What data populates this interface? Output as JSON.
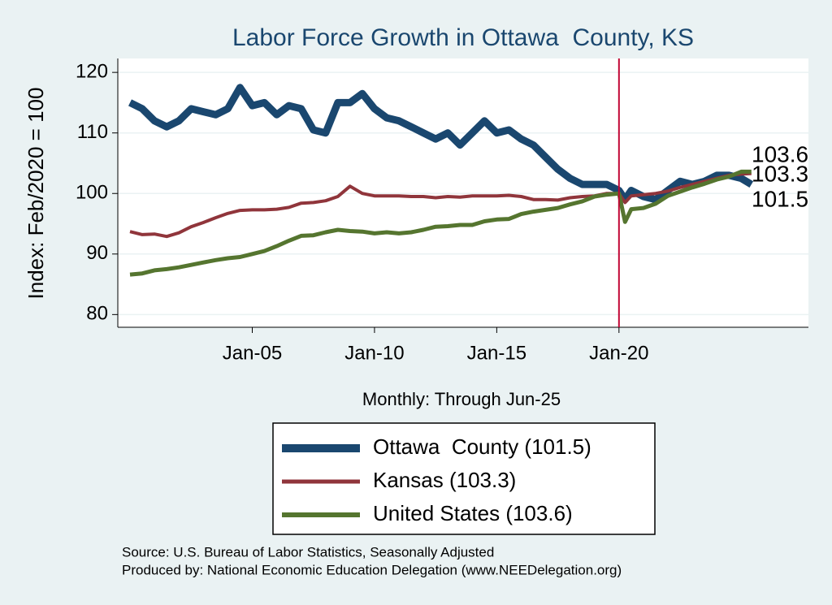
{
  "chart_data": {
    "type": "line",
    "title": "Labor Force Growth in Ottawa  County, KS",
    "y_label": "Index: Feb/2020 = 100",
    "x_label": "Monthly: Through Jun-25",
    "source": "Source: U.S. Bureau of Labor Statistics, Seasonally Adjusted",
    "producer": "Produced by: National Economic Education Delegation (www.NEEDelegation.org)",
    "x": [
      "Jan-00",
      "Jul-00",
      "Jan-01",
      "Jul-01",
      "Jan-02",
      "Jul-02",
      "Jan-03",
      "Jul-03",
      "Jan-04",
      "Jul-04",
      "Jan-05",
      "Jul-05",
      "Jan-06",
      "Jul-06",
      "Jan-07",
      "Jul-07",
      "Jan-08",
      "Jul-08",
      "Jan-09",
      "Jul-09",
      "Jan-10",
      "Jul-10",
      "Jan-11",
      "Jul-11",
      "Jan-12",
      "Jul-12",
      "Jan-13",
      "Jul-13",
      "Jan-14",
      "Jul-14",
      "Jan-15",
      "Jul-15",
      "Jan-16",
      "Jul-16",
      "Jan-17",
      "Jul-17",
      "Jan-18",
      "Jul-18",
      "Jan-19",
      "Jul-19",
      "Jan-20",
      "Apr-20",
      "Jul-20",
      "Jan-21",
      "Jul-21",
      "Jan-22",
      "Jul-22",
      "Jan-23",
      "Jul-23",
      "Jan-24",
      "Jul-24",
      "Jan-25",
      "Jun-25"
    ],
    "series": [
      {
        "name": "Ottawa  County (101.5)",
        "color": "#1a476f",
        "values": [
          115,
          114,
          112,
          111,
          112,
          114,
          113.5,
          113,
          114,
          117.5,
          114.5,
          115,
          113,
          114.5,
          114,
          110.5,
          110,
          115,
          115,
          116.5,
          114,
          112.5,
          112,
          111,
          110,
          109,
          110,
          108,
          110,
          112,
          110,
          110.5,
          109,
          108,
          106,
          104,
          102.5,
          101.5,
          101.5,
          101.5,
          100.5,
          99,
          100.5,
          99.5,
          99,
          100.5,
          102,
          101.5,
          102,
          103,
          103,
          102.5,
          101.5
        ]
      },
      {
        "name": "Kansas (103.3)",
        "color": "#90353b",
        "values": [
          93.7,
          93.2,
          93.3,
          92.9,
          93.5,
          94.5,
          95.2,
          96,
          96.7,
          97.2,
          97.3,
          97.3,
          97.4,
          97.7,
          98.4,
          98.5,
          98.8,
          99.5,
          101.2,
          100,
          99.6,
          99.6,
          99.6,
          99.5,
          99.5,
          99.3,
          99.5,
          99.4,
          99.6,
          99.6,
          99.6,
          99.7,
          99.5,
          99,
          99,
          98.9,
          99.3,
          99.5,
          99.6,
          100,
          100,
          98.5,
          99.6,
          99.8,
          100,
          100.4,
          101,
          101.5,
          102,
          102.5,
          103,
          103.2,
          103.3
        ]
      },
      {
        "name": "United States (103.6)",
        "color": "#55752f",
        "values": [
          86.6,
          86.8,
          87.3,
          87.5,
          87.8,
          88.2,
          88.6,
          89,
          89.3,
          89.5,
          90,
          90.5,
          91.3,
          92.2,
          93,
          93.1,
          93.6,
          94,
          93.8,
          93.7,
          93.4,
          93.6,
          93.4,
          93.6,
          94,
          94.5,
          94.6,
          94.8,
          94.8,
          95.4,
          95.7,
          95.8,
          96.6,
          97,
          97.3,
          97.6,
          98.2,
          98.7,
          99.5,
          99.8,
          100,
          95.3,
          97.4,
          97.6,
          98.3,
          99.6,
          100.3,
          101,
          101.6,
          102.3,
          102.8,
          103.6,
          103.6
        ]
      }
    ],
    "xlim": [
      "Jul-99",
      "Oct-27"
    ],
    "xticks": [
      "Jan-05",
      "Jan-10",
      "Jan-15",
      "Jan-20"
    ],
    "ylim": [
      77.9,
      122.3
    ],
    "yticks": [
      80,
      90,
      100,
      110,
      120
    ],
    "grid": true,
    "vline": {
      "x": "Jan-20",
      "color": "#c10534"
    }
  }
}
